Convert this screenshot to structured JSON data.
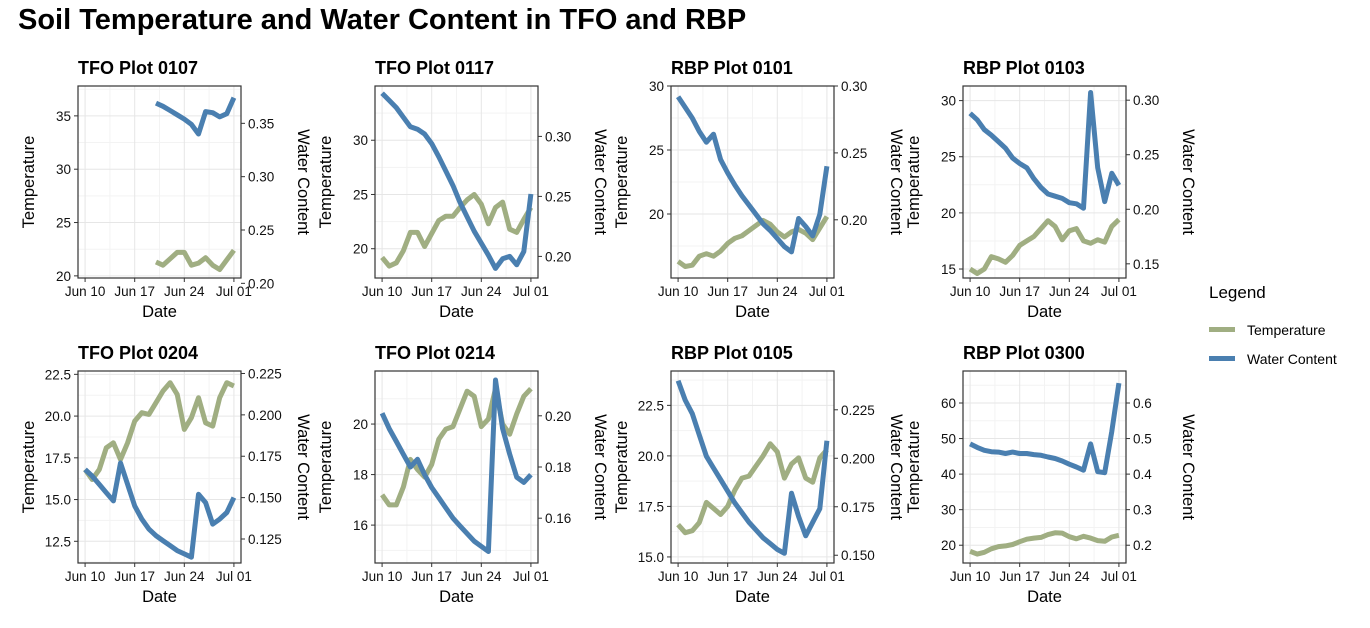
{
  "title": "Soil Temperature and Water Content in TFO and RBP",
  "legend": {
    "title": "Legend",
    "items": [
      {
        "label": "Temperature",
        "color": "#a0ae82"
      },
      {
        "label": "Water Content",
        "color": "#4a7fb0"
      }
    ]
  },
  "chart_data": [
    {
      "type": "line",
      "title": "TFO Plot 0107",
      "xlabel": "Date",
      "ylabel": "Temperature",
      "y2label": "Water Content",
      "x_dates": [
        "2024-06-20",
        "2024-06-21",
        "2024-06-22",
        "2024-06-23",
        "2024-06-24",
        "2024-06-25",
        "2024-06-26",
        "2024-06-27",
        "2024-06-28",
        "2024-06-29",
        "2024-06-30",
        "2024-07-01"
      ],
      "xticks": [
        "Jun 10",
        "Jun 17",
        "Jun 24",
        "Jul 01"
      ],
      "xlim": [
        "2024-06-09",
        "2024-07-02"
      ],
      "ylim": [
        19.8,
        37.8
      ],
      "yticks": [
        20,
        25,
        30,
        35
      ],
      "y2lim": [
        0.205,
        0.385
      ],
      "y2ticks": [
        "0.20",
        "0.25",
        "0.30",
        "0.35"
      ],
      "grid": true,
      "series": [
        {
          "name": "Temperature",
          "axis": "left",
          "values": [
            21.3,
            21.0,
            21.6,
            22.2,
            22.2,
            21.0,
            21.2,
            21.7,
            21.0,
            20.6,
            21.5,
            22.4
          ]
        },
        {
          "name": "Water Content",
          "axis": "right",
          "values": [
            0.369,
            0.366,
            0.362,
            0.358,
            0.354,
            0.349,
            0.34,
            0.361,
            0.36,
            0.356,
            0.359,
            0.374
          ]
        }
      ]
    },
    {
      "type": "line",
      "title": "TFO Plot 0117",
      "xlabel": "Date",
      "ylabel": "Temperature",
      "y2label": "Water Content",
      "x_dates": [
        "2024-06-10",
        "2024-06-11",
        "2024-06-12",
        "2024-06-13",
        "2024-06-14",
        "2024-06-15",
        "2024-06-16",
        "2024-06-17",
        "2024-06-18",
        "2024-06-19",
        "2024-06-20",
        "2024-06-21",
        "2024-06-22",
        "2024-06-23",
        "2024-06-24",
        "2024-06-25",
        "2024-06-26",
        "2024-06-27",
        "2024-06-28",
        "2024-06-29",
        "2024-06-30",
        "2024-07-01"
      ],
      "xticks": [
        "Jun 10",
        "Jun 17",
        "Jun 24",
        "Jul 01"
      ],
      "xlim": [
        "2024-06-09",
        "2024-07-02"
      ],
      "ylim": [
        17.3,
        35.0
      ],
      "yticks": [
        20,
        25,
        30
      ],
      "y2lim": [
        0.182,
        0.342
      ],
      "y2ticks": [
        "0.20",
        "0.25",
        "0.30"
      ],
      "grid": true,
      "series": [
        {
          "name": "Temperature",
          "axis": "left",
          "values": [
            19.2,
            18.4,
            18.7,
            19.8,
            21.5,
            21.5,
            20.2,
            21.4,
            22.6,
            23.0,
            23.0,
            23.8,
            24.5,
            25.0,
            24.1,
            22.3,
            23.8,
            24.3,
            21.8,
            21.5,
            22.7,
            23.8
          ]
        },
        {
          "name": "Water Content",
          "axis": "right",
          "values": [
            0.336,
            0.33,
            0.324,
            0.316,
            0.308,
            0.306,
            0.302,
            0.294,
            0.283,
            0.271,
            0.259,
            0.245,
            0.233,
            0.221,
            0.211,
            0.201,
            0.19,
            0.198,
            0.2,
            0.193,
            0.204,
            0.252
          ]
        }
      ]
    },
    {
      "type": "line",
      "title": "RBP Plot 0101",
      "xlabel": "Date",
      "ylabel": "Temperature",
      "y2label": "Water Content",
      "x_dates": [
        "2024-06-10",
        "2024-06-11",
        "2024-06-12",
        "2024-06-13",
        "2024-06-14",
        "2024-06-15",
        "2024-06-16",
        "2024-06-17",
        "2024-06-18",
        "2024-06-19",
        "2024-06-20",
        "2024-06-21",
        "2024-06-22",
        "2024-06-23",
        "2024-06-24",
        "2024-06-25",
        "2024-06-26",
        "2024-06-27",
        "2024-06-28",
        "2024-06-29",
        "2024-06-30",
        "2024-07-01"
      ],
      "xticks": [
        "Jun 10",
        "Jun 17",
        "Jun 24",
        "Jul 01"
      ],
      "xlim": [
        "2024-06-09",
        "2024-07-02"
      ],
      "ylim": [
        15.0,
        30.0
      ],
      "yticks": [
        20,
        25,
        30
      ],
      "y2lim": [
        0.1565,
        0.3
      ],
      "y2ticks": [
        "0.20",
        "0.25",
        "0.30"
      ],
      "grid": true,
      "series": [
        {
          "name": "Temperature",
          "axis": "left",
          "values": [
            16.3,
            15.9,
            16.0,
            16.7,
            16.9,
            16.7,
            17.1,
            17.7,
            18.1,
            18.3,
            18.7,
            19.1,
            19.5,
            19.2,
            18.6,
            18.2,
            18.6,
            18.8,
            18.5,
            18.0,
            18.9,
            19.8
          ]
        },
        {
          "name": "Water Content",
          "axis": "right",
          "values": [
            0.292,
            0.284,
            0.276,
            0.266,
            0.258,
            0.264,
            0.245,
            0.235,
            0.226,
            0.218,
            0.211,
            0.204,
            0.197,
            0.192,
            0.186,
            0.18,
            0.176,
            0.201,
            0.195,
            0.188,
            0.204,
            0.24
          ]
        }
      ]
    },
    {
      "type": "line",
      "title": "RBP Plot 0103",
      "xlabel": "Date",
      "ylabel": "Temperature",
      "y2label": "Water Content",
      "x_dates": [
        "2024-06-10",
        "2024-06-11",
        "2024-06-12",
        "2024-06-13",
        "2024-06-14",
        "2024-06-15",
        "2024-06-16",
        "2024-06-17",
        "2024-06-18",
        "2024-06-19",
        "2024-06-20",
        "2024-06-21",
        "2024-06-22",
        "2024-06-23",
        "2024-06-24",
        "2024-06-25",
        "2024-06-26",
        "2024-06-27",
        "2024-06-28",
        "2024-06-29",
        "2024-06-30",
        "2024-07-01"
      ],
      "xticks": [
        "Jun 10",
        "Jun 17",
        "Jun 24",
        "Jul 01"
      ],
      "xlim": [
        "2024-06-09",
        "2024-07-02"
      ],
      "ylim": [
        14.2,
        31.3
      ],
      "yticks": [
        15,
        20,
        25,
        30
      ],
      "y2lim": [
        0.137,
        0.313
      ],
      "y2ticks": [
        "0.15",
        "0.20",
        "0.25",
        "0.30"
      ],
      "grid": true,
      "series": [
        {
          "name": "Temperature",
          "axis": "left",
          "values": [
            15.0,
            14.6,
            15.0,
            16.1,
            15.9,
            15.6,
            16.2,
            17.1,
            17.5,
            17.9,
            18.6,
            19.3,
            18.8,
            17.6,
            18.4,
            18.6,
            17.5,
            17.3,
            17.6,
            17.4,
            18.8,
            19.4
          ]
        },
        {
          "name": "Water Content",
          "axis": "right",
          "values": [
            0.288,
            0.282,
            0.273,
            0.268,
            0.262,
            0.256,
            0.247,
            0.242,
            0.238,
            0.228,
            0.22,
            0.214,
            0.212,
            0.21,
            0.206,
            0.205,
            0.201,
            0.307,
            0.238,
            0.207,
            0.233,
            0.222
          ]
        }
      ]
    },
    {
      "type": "line",
      "title": "TFO Plot 0204",
      "xlabel": "Date",
      "ylabel": "Temperature",
      "y2label": "Water Content",
      "x_dates": [
        "2024-06-10",
        "2024-06-11",
        "2024-06-12",
        "2024-06-13",
        "2024-06-14",
        "2024-06-15",
        "2024-06-16",
        "2024-06-17",
        "2024-06-18",
        "2024-06-19",
        "2024-06-20",
        "2024-06-21",
        "2024-06-22",
        "2024-06-23",
        "2024-06-24",
        "2024-06-25",
        "2024-06-26",
        "2024-06-27",
        "2024-06-28",
        "2024-06-29",
        "2024-06-30",
        "2024-07-01"
      ],
      "xticks": [
        "Jun 10",
        "Jun 17",
        "Jun 24",
        "Jul 01"
      ],
      "xlim": [
        "2024-06-09",
        "2024-07-02"
      ],
      "ylim": [
        11.2,
        22.7
      ],
      "yticks": [
        "12.5",
        "15.0",
        "17.5",
        "20.0",
        "22.5"
      ],
      "y2lim": [
        0.1105,
        0.2265
      ],
      "y2ticks": [
        "0.125",
        "0.150",
        "0.175",
        "0.200",
        "0.225"
      ],
      "grid": true,
      "series": [
        {
          "name": "Temperature",
          "axis": "left",
          "values": [
            16.8,
            16.2,
            16.8,
            18.1,
            18.4,
            17.4,
            18.4,
            19.7,
            20.2,
            20.1,
            20.8,
            21.5,
            22.0,
            21.3,
            19.2,
            19.9,
            21.1,
            19.6,
            19.4,
            21.1,
            22.0,
            21.8
          ]
        },
        {
          "name": "Water Content",
          "axis": "right",
          "values": [
            0.167,
            0.163,
            0.158,
            0.153,
            0.148,
            0.171,
            0.158,
            0.145,
            0.137,
            0.131,
            0.127,
            0.124,
            0.121,
            0.118,
            0.116,
            0.114,
            0.152,
            0.147,
            0.134,
            0.137,
            0.141,
            0.15
          ]
        }
      ]
    },
    {
      "type": "line",
      "title": "TFO Plot 0214",
      "xlabel": "Date",
      "ylabel": "Temperature",
      "y2label": "Water Content",
      "x_dates": [
        "2024-06-10",
        "2024-06-11",
        "2024-06-12",
        "2024-06-13",
        "2024-06-14",
        "2024-06-15",
        "2024-06-16",
        "2024-06-17",
        "2024-06-18",
        "2024-06-19",
        "2024-06-20",
        "2024-06-21",
        "2024-06-22",
        "2024-06-23",
        "2024-06-24",
        "2024-06-25",
        "2024-06-26",
        "2024-06-27",
        "2024-06-28",
        "2024-06-29",
        "2024-06-30",
        "2024-07-01"
      ],
      "xticks": [
        "Jun 10",
        "Jun 17",
        "Jun 24",
        "Jul 01"
      ],
      "xlim": [
        "2024-06-09",
        "2024-07-02"
      ],
      "ylim": [
        14.5,
        22.1
      ],
      "yticks": [
        16,
        18,
        20
      ],
      "y2lim": [
        0.1425,
        0.2175
      ],
      "y2ticks": [
        "0.16",
        "0.18",
        "0.20"
      ],
      "grid": true,
      "series": [
        {
          "name": "Temperature",
          "axis": "left",
          "values": [
            17.2,
            16.8,
            16.8,
            17.5,
            18.6,
            18.2,
            17.9,
            18.4,
            19.4,
            19.8,
            19.9,
            20.6,
            21.3,
            21.1,
            19.9,
            20.2,
            21.4,
            20.0,
            19.6,
            20.4,
            21.1,
            21.4
          ]
        },
        {
          "name": "Water Content",
          "axis": "right",
          "values": [
            0.201,
            0.195,
            0.19,
            0.185,
            0.18,
            0.183,
            0.177,
            0.172,
            0.168,
            0.164,
            0.16,
            0.157,
            0.154,
            0.151,
            0.149,
            0.147,
            0.214,
            0.195,
            0.185,
            0.176,
            0.174,
            0.177
          ]
        }
      ]
    },
    {
      "type": "line",
      "title": "RBP Plot 0105",
      "xlabel": "Date",
      "ylabel": "Temperature",
      "y2label": "Water Content",
      "x_dates": [
        "2024-06-10",
        "2024-06-11",
        "2024-06-12",
        "2024-06-13",
        "2024-06-14",
        "2024-06-15",
        "2024-06-16",
        "2024-06-17",
        "2024-06-18",
        "2024-06-19",
        "2024-06-20",
        "2024-06-21",
        "2024-06-22",
        "2024-06-23",
        "2024-06-24",
        "2024-06-25",
        "2024-06-26",
        "2024-06-27",
        "2024-06-28",
        "2024-06-29",
        "2024-06-30",
        "2024-07-01"
      ],
      "xticks": [
        "Jun 10",
        "Jun 17",
        "Jun 24",
        "Jul 01"
      ],
      "xlim": [
        "2024-06-09",
        "2024-07-02"
      ],
      "ylim": [
        14.7,
        24.2
      ],
      "yticks": [
        "15.0",
        "17.5",
        "20.0",
        "22.5"
      ],
      "y2lim": [
        0.146,
        0.245
      ],
      "y2ticks": [
        "0.150",
        "0.175",
        "0.200",
        "0.225"
      ],
      "grid": true,
      "series": [
        {
          "name": "Temperature",
          "axis": "left",
          "values": [
            16.6,
            16.2,
            16.3,
            16.7,
            17.7,
            17.4,
            17.1,
            17.5,
            18.3,
            18.9,
            19.0,
            19.5,
            20.0,
            20.6,
            20.2,
            18.9,
            19.6,
            19.9,
            18.9,
            18.7,
            19.9,
            20.3
          ]
        },
        {
          "name": "Water Content",
          "axis": "right",
          "values": [
            0.24,
            0.23,
            0.223,
            0.212,
            0.201,
            0.195,
            0.189,
            0.183,
            0.177,
            0.172,
            0.167,
            0.163,
            0.159,
            0.156,
            0.153,
            0.151,
            0.182,
            0.17,
            0.16,
            0.167,
            0.174,
            0.209
          ]
        }
      ]
    },
    {
      "type": "line",
      "title": "RBP Plot 0300",
      "xlabel": "Date",
      "ylabel": "Temperature",
      "y2label": "Water Content",
      "x_dates": [
        "2024-06-10",
        "2024-06-11",
        "2024-06-12",
        "2024-06-13",
        "2024-06-14",
        "2024-06-15",
        "2024-06-16",
        "2024-06-17",
        "2024-06-18",
        "2024-06-19",
        "2024-06-20",
        "2024-06-21",
        "2024-06-22",
        "2024-06-23",
        "2024-06-24",
        "2024-06-25",
        "2024-06-26",
        "2024-06-27",
        "2024-06-28",
        "2024-06-29",
        "2024-06-30",
        "2024-07-01"
      ],
      "xticks": [
        "Jun 10",
        "Jun 17",
        "Jun 24",
        "Jul 01"
      ],
      "xlim": [
        "2024-06-09",
        "2024-07-02"
      ],
      "ylim": [
        15.0,
        69.0
      ],
      "yticks": [
        20,
        30,
        40,
        50,
        60
      ],
      "y2lim": [
        0.15,
        0.69
      ],
      "y2ticks": [
        "0.2",
        "0.3",
        "0.4",
        "0.5",
        "0.6"
      ],
      "grid": true,
      "series": [
        {
          "name": "Temperature",
          "axis": "left",
          "values": [
            18.3,
            17.5,
            18.0,
            19.0,
            19.6,
            19.8,
            20.2,
            21.0,
            21.7,
            22.0,
            22.2,
            23.0,
            23.5,
            23.4,
            22.4,
            21.8,
            22.5,
            22.0,
            21.3,
            21.1,
            22.3,
            22.8
          ]
        },
        {
          "name": "Water Content",
          "axis": "right",
          "values": [
            0.485,
            0.475,
            0.467,
            0.463,
            0.462,
            0.458,
            0.462,
            0.458,
            0.458,
            0.455,
            0.453,
            0.448,
            0.444,
            0.437,
            0.428,
            0.42,
            0.411,
            0.485,
            0.407,
            0.404,
            0.52,
            0.656
          ]
        }
      ]
    }
  ]
}
